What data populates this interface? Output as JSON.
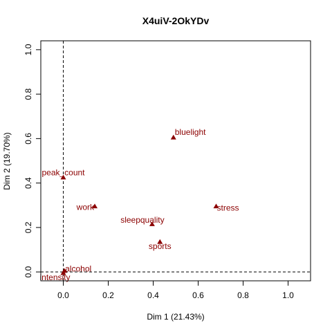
{
  "chart_data": {
    "type": "scatter",
    "title": "X4uiV-2OkYDv",
    "xlabel": "Dim 1 (21.43%)",
    "ylabel": "Dim 2 (19.70%)",
    "xlim": [
      -0.1,
      1.1
    ],
    "ylim": [
      -0.04,
      1.04
    ],
    "xticks": [
      0.0,
      0.2,
      0.4,
      0.6,
      0.8,
      1.0
    ],
    "xtick_labels": [
      "0.0",
      "0.2",
      "0.4",
      "0.6",
      "0.8",
      "1.0"
    ],
    "yticks": [
      0.0,
      0.2,
      0.4,
      0.6,
      0.8,
      1.0
    ],
    "ytick_labels": [
      "0.0",
      "0.2",
      "0.4",
      "0.6",
      "0.8",
      "1.0"
    ],
    "reference_lines": {
      "x": 0,
      "y": 0,
      "style": "dashed"
    },
    "marker": "triangle",
    "point_color": "#8b0000",
    "label_color": "#8b0000",
    "grid": false,
    "points": [
      {
        "label": "bluelight",
        "x": 0.49,
        "y": 0.605
      },
      {
        "label": "peak_count",
        "x": 0.0,
        "y": 0.425
      },
      {
        "label": "work",
        "x": 0.14,
        "y": 0.295
      },
      {
        "label": "stress",
        "x": 0.68,
        "y": 0.295
      },
      {
        "label": "sleepquality",
        "x": 0.395,
        "y": 0.215
      },
      {
        "label": "sports",
        "x": 0.43,
        "y": 0.135
      },
      {
        "label": "alcohol",
        "x": 0.005,
        "y": 0.005
      },
      {
        "label": "intensity",
        "x": 0.0,
        "y": -0.005
      }
    ]
  }
}
